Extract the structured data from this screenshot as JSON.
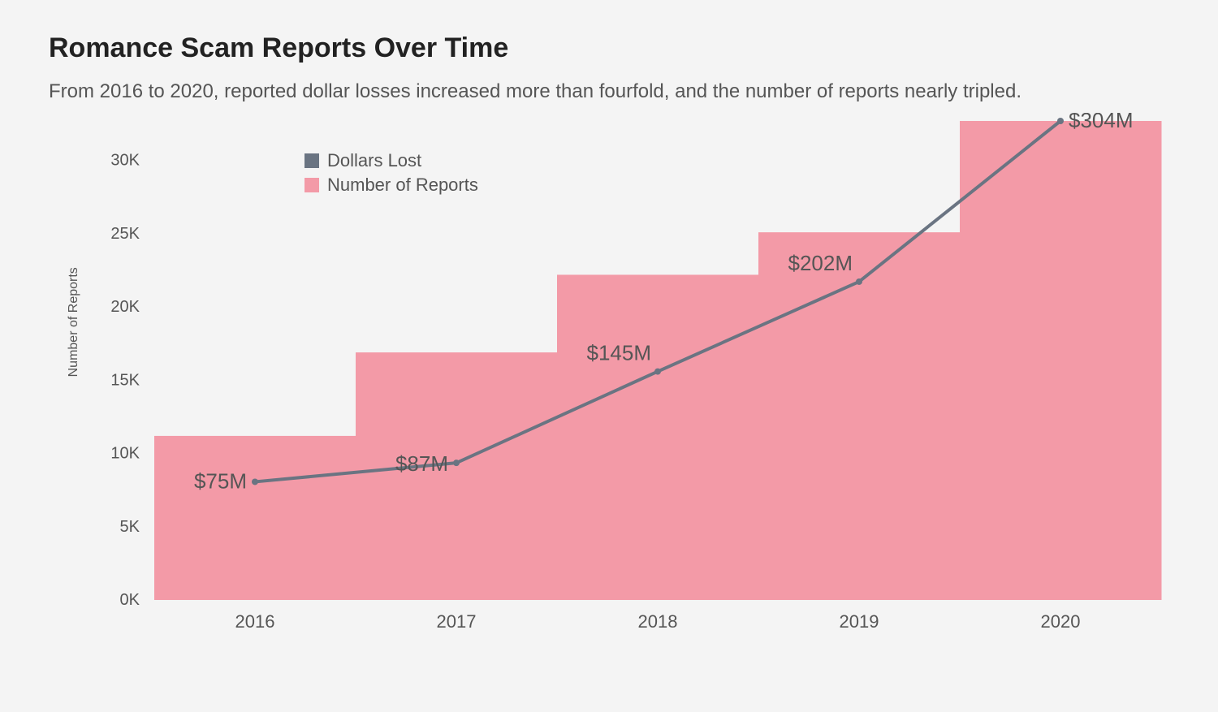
{
  "title": "Romance Scam Reports Over Time",
  "subtitle": "From 2016 to 2020, reported dollar losses increased more than fourfold, and the number of reports nearly tripled.",
  "chart": {
    "type": "bar+line",
    "background_color": "#f4f4f4",
    "categories": [
      "2016",
      "2017",
      "2018",
      "2019",
      "2020"
    ],
    "bars": {
      "name": "Number of Reports",
      "values": [
        11200,
        16900,
        22200,
        25100,
        32700
      ],
      "color": "#f39aa7",
      "bar_width_ratio": 1.0
    },
    "line": {
      "name": "Dollars Lost",
      "values": [
        75,
        87,
        145,
        202,
        304
      ],
      "labels": [
        "$75M",
        "$87M",
        "$145M",
        "$202M",
        "$304M"
      ],
      "color": "#6a7482",
      "line_width": 4,
      "marker_radius": 4
    },
    "y_left": {
      "label": "Number of Reports",
      "min": 0,
      "max": 32700,
      "ticks": [
        0,
        5000,
        10000,
        15000,
        20000,
        25000,
        30000
      ],
      "tick_labels": [
        "0K",
        "5K",
        "10K",
        "15K",
        "20K",
        "25K",
        "30K"
      ]
    },
    "y_right_line": {
      "min": 0,
      "max": 304
    },
    "legend": {
      "items": [
        {
          "label": "Dollars Lost",
          "swatch_color": "#6a7482"
        },
        {
          "label": "Number of Reports",
          "swatch_color": "#f39aa7"
        }
      ],
      "fontsize": 22
    },
    "axis_fontsize": 20,
    "category_fontsize": 22,
    "data_label_fontsize": 26,
    "y_axis_title_fontsize": 16
  }
}
